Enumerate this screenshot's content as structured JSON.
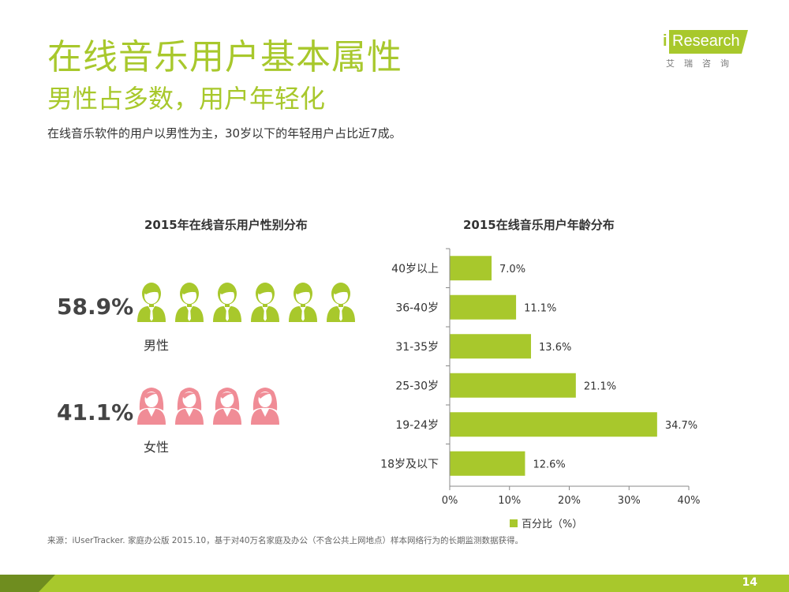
{
  "header": {
    "title": "在线音乐用户基本属性",
    "subtitle": "男性占多数，用户年轻化",
    "summary": "在线音乐软件的用户以男性为主，30岁以下的年轻用户占比近7成。"
  },
  "logo": {
    "i": "i",
    "text": "Research",
    "cn": "艾瑞咨询"
  },
  "gender_chart": {
    "title": "2015年在线音乐用户性别分布",
    "male": {
      "value": "58.9%",
      "label": "男性",
      "icon_count": 6,
      "color": "#a8c82c"
    },
    "female": {
      "value": "41.1%",
      "label": "女性",
      "icon_count": 4,
      "color": "#f08c96"
    }
  },
  "chart_data": {
    "type": "bar",
    "orientation": "horizontal",
    "title": "2015在线音乐用户年龄分布",
    "categories": [
      "40岁以上",
      "36-40岁",
      "31-35岁",
      "25-30岁",
      "19-24岁",
      "18岁及以下"
    ],
    "series": [
      {
        "name": "百分比（%）",
        "values": [
          7.0,
          11.1,
          13.6,
          21.1,
          34.7,
          12.6
        ],
        "color": "#a8c82c"
      }
    ],
    "value_labels": [
      "7.0%",
      "11.1%",
      "13.6%",
      "21.1%",
      "34.7%",
      "12.6%"
    ],
    "xticks": [
      "0%",
      "10%",
      "20%",
      "30%",
      "40%"
    ],
    "xlim": [
      0,
      40
    ],
    "legend": "bottom-center"
  },
  "footer": {
    "source": "来源：iUserTracker. 家庭办公版 2015.10，基于对40万名家庭及办公（不含公共上网地点）样本网络行为的长期监测数据获得。",
    "page": "14"
  }
}
